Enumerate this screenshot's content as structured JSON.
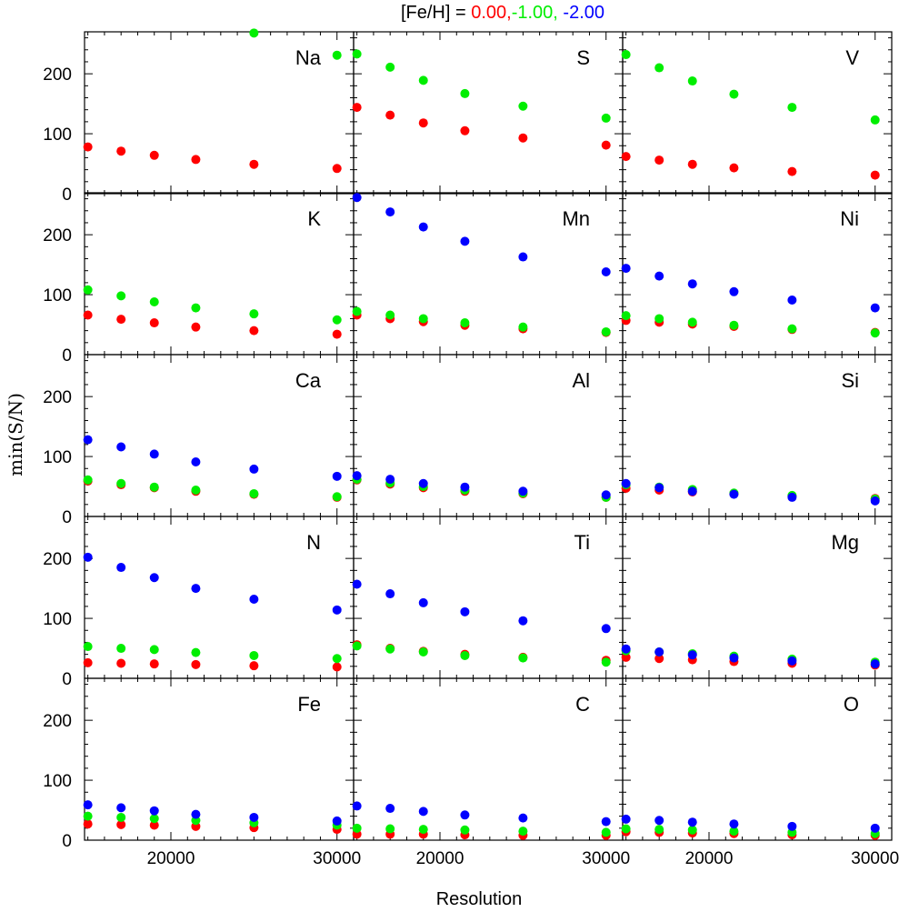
{
  "chart_data": {
    "type": "scatter",
    "title": {
      "prefix": "[Fe/H] = ",
      "parts": [
        {
          "text": "0.00,",
          "color": "#ff0000"
        },
        {
          "text": "-1.00,",
          "color": "#00ee00"
        },
        {
          "text": " -2.00",
          "color": "#0000ff"
        }
      ]
    },
    "xlabel": "Resolution",
    "ylabel": "min(S/N)",
    "xlim": [
      14800,
      31000
    ],
    "ylim": [
      0,
      270
    ],
    "xticks": [
      20000,
      30000
    ],
    "yticks": [
      0,
      100,
      200
    ],
    "series_colors": {
      "0.00": "#ff0000",
      "-1.00": "#00ee00",
      "-2.00": "#0000ff"
    },
    "x": [
      15000,
      17000,
      19000,
      21500,
      25000,
      30000
    ],
    "panels": [
      {
        "element": "Na",
        "series": [
          {
            "name": "0.00",
            "values": [
              78,
              71,
              64,
              57,
              49,
              42
            ]
          },
          {
            "name": "-1.00",
            "values": [
              null,
              null,
              null,
              null,
              268,
              231
            ]
          }
        ]
      },
      {
        "element": "S",
        "series": [
          {
            "name": "0.00",
            "values": [
              144,
              131,
              118,
              105,
              93,
              81
            ]
          },
          {
            "name": "-1.00",
            "values": [
              233,
              211,
              189,
              167,
              146,
              126
            ]
          }
        ]
      },
      {
        "element": "V",
        "series": [
          {
            "name": "0.00",
            "values": [
              62,
              56,
              49,
              43,
              37,
              31
            ]
          },
          {
            "name": "-1.00",
            "values": [
              232,
              210,
              188,
              166,
              144,
              123
            ]
          }
        ]
      },
      {
        "element": "K",
        "series": [
          {
            "name": "0.00",
            "values": [
              66,
              59,
              53,
              46,
              40,
              34
            ]
          },
          {
            "name": "-1.00",
            "values": [
              108,
              98,
              88,
              78,
              68,
              58
            ]
          }
        ]
      },
      {
        "element": "Mn",
        "series": [
          {
            "name": "0.00",
            "values": [
              66,
              60,
              55,
              49,
              43,
              37
            ]
          },
          {
            "name": "-1.00",
            "values": [
              72,
              66,
              60,
              53,
              46,
              38
            ]
          },
          {
            "name": "-2.00",
            "values": [
              262,
              238,
              213,
              189,
              163,
              138
            ]
          }
        ]
      },
      {
        "element": "Ni",
        "series": [
          {
            "name": "0.00",
            "values": [
              57,
              54,
              51,
              47,
              42,
              37
            ]
          },
          {
            "name": "-1.00",
            "values": [
              65,
              60,
              54,
              49,
              43,
              36
            ]
          },
          {
            "name": "-2.00",
            "values": [
              144,
              131,
              118,
              105,
              91,
              78
            ]
          }
        ]
      },
      {
        "element": "Ca",
        "series": [
          {
            "name": "0.00",
            "values": [
              59,
              53,
              48,
              42,
              37,
              32
            ]
          },
          {
            "name": "-1.00",
            "values": [
              61,
              55,
              49,
              44,
              38,
              33
            ]
          },
          {
            "name": "-2.00",
            "values": [
              128,
              116,
              104,
              91,
              79,
              67
            ]
          }
        ]
      },
      {
        "element": "Al",
        "series": [
          {
            "name": "0.00",
            "values": [
              61,
              54,
              48,
              42,
              38,
              32
            ]
          },
          {
            "name": "-1.00",
            "values": [
              62,
              56,
              50,
              44,
              39,
              32
            ]
          },
          {
            "name": "-2.00",
            "values": [
              68,
              62,
              55,
              49,
              42,
              36
            ]
          }
        ]
      },
      {
        "element": "Si",
        "series": [
          {
            "name": "0.00",
            "values": [
              47,
              44,
              41,
              38,
              34,
              30
            ]
          },
          {
            "name": "-1.00",
            "values": [
              53,
              49,
              45,
              39,
              35,
              29
            ]
          },
          {
            "name": "-2.00",
            "values": [
              55,
              48,
              42,
              37,
              32,
              26
            ]
          }
        ]
      },
      {
        "element": "N",
        "series": [
          {
            "name": "0.00",
            "values": [
              26,
              25,
              24,
              23,
              21,
              19
            ]
          },
          {
            "name": "-1.00",
            "values": [
              53,
              50,
              48,
              43,
              38,
              33
            ]
          },
          {
            "name": "-2.00",
            "values": [
              202,
              185,
              168,
              150,
              132,
              114
            ]
          }
        ]
      },
      {
        "element": "Ti",
        "series": [
          {
            "name": "0.00",
            "values": [
              56,
              50,
              45,
              40,
              35,
              30
            ]
          },
          {
            "name": "-1.00",
            "values": [
              54,
              49,
              44,
              38,
              34,
              27
            ]
          },
          {
            "name": "-2.00",
            "values": [
              157,
              141,
              126,
              111,
              96,
              83
            ]
          }
        ]
      },
      {
        "element": "Mg",
        "series": [
          {
            "name": "0.00",
            "values": [
              35,
              33,
              31,
              28,
              25,
              22
            ]
          },
          {
            "name": "-1.00",
            "values": [
              46,
              44,
              41,
              37,
              32,
              27
            ]
          },
          {
            "name": "-2.00",
            "values": [
              49,
              44,
              39,
              34,
              29,
              24
            ]
          }
        ]
      },
      {
        "element": "Fe",
        "series": [
          {
            "name": "0.00",
            "values": [
              27,
              26,
              25,
              23,
              21,
              18
            ]
          },
          {
            "name": "-1.00",
            "values": [
              40,
              38,
              36,
              33,
              29,
              25
            ]
          },
          {
            "name": "-2.00",
            "values": [
              59,
              54,
              49,
              43,
              38,
              32
            ]
          }
        ]
      },
      {
        "element": "C",
        "series": [
          {
            "name": "0.00",
            "values": [
              10,
              10,
              10,
              9,
              8,
              8
            ]
          },
          {
            "name": "-1.00",
            "values": [
              20,
              19,
              18,
              17,
              15,
              13
            ]
          },
          {
            "name": "-2.00",
            "values": [
              57,
              53,
              48,
              42,
              37,
              31
            ]
          }
        ]
      },
      {
        "element": "O",
        "series": [
          {
            "name": "0.00",
            "values": [
              14,
              13,
              12,
              11,
              9,
              8
            ]
          },
          {
            "name": "-1.00",
            "values": [
              19,
              18,
              17,
              15,
              13,
              11
            ]
          },
          {
            "name": "-2.00",
            "values": [
              35,
              33,
              30,
              27,
              23,
              20
            ]
          }
        ]
      }
    ]
  }
}
